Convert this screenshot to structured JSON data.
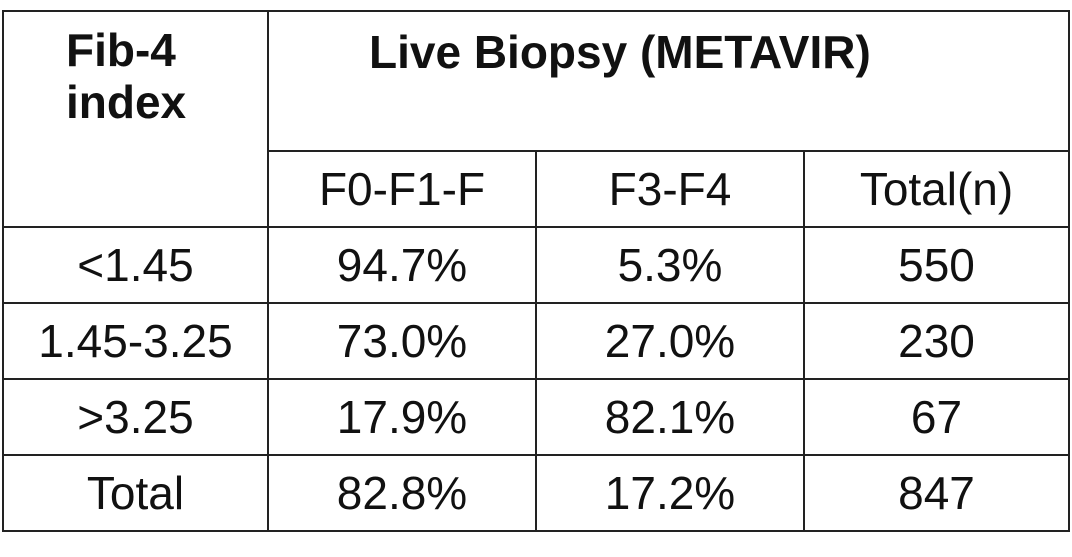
{
  "table": {
    "corner_header_line1": "Fib-4",
    "corner_header_line2": "index",
    "group_header": "Live Biopsy (METAVIR)",
    "sub_headers": [
      "F0-F1-F",
      "F3-F4",
      "Total(n)"
    ],
    "rows": [
      {
        "index": "<1.45",
        "f0_f1_f": "94.7%",
        "f3_f4": "5.3%",
        "total_n": "550"
      },
      {
        "index": "1.45-3.25",
        "f0_f1_f": "73.0%",
        "f3_f4": "27.0%",
        "total_n": "230"
      },
      {
        "index": ">3.25",
        "f0_f1_f": "17.9%",
        "f3_f4": "82.1%",
        "total_n": "67"
      },
      {
        "index": "Total",
        "f0_f1_f": "82.8%",
        "f3_f4": "17.2%",
        "total_n": "847"
      }
    ]
  }
}
